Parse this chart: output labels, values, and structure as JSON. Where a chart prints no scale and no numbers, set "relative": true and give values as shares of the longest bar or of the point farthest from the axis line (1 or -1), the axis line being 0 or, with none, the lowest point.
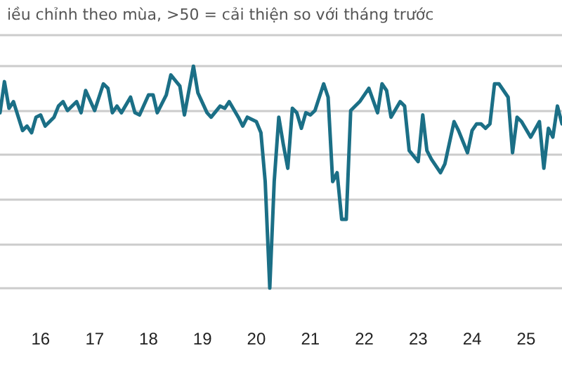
{
  "chart_data": {
    "type": "line",
    "subtitle": "iều chỉnh theo mùa, >50 = cải thiện so với tháng trước",
    "relative": true,
    "grid": "y",
    "marker": "none",
    "line_style": "solid",
    "xlim": [
      "2015-04",
      "2025-09"
    ],
    "xticks": [
      {
        "value": "2016-01",
        "label": "16"
      },
      {
        "value": "2017-01",
        "label": "17"
      },
      {
        "value": "2018-01",
        "label": "18"
      },
      {
        "value": "2019-01",
        "label": "19"
      },
      {
        "value": "2020-01",
        "label": "20"
      },
      {
        "value": "2021-01",
        "label": "21"
      },
      {
        "value": "2022-01",
        "label": "22"
      },
      {
        "value": "2023-01",
        "label": "23"
      },
      {
        "value": "2024-01",
        "label": "24"
      },
      {
        "value": "2025-01",
        "label": "25"
      }
    ],
    "x": [
      "2015-04",
      "2015-05",
      "2015-06",
      "2015-07",
      "2015-09",
      "2015-10",
      "2015-11",
      "2015-12",
      "2016-01",
      "2016-02",
      "2016-04",
      "2016-05",
      "2016-06",
      "2016-07",
      "2016-09",
      "2016-10",
      "2016-11",
      "2017-01",
      "2017-03",
      "2017-04",
      "2017-05",
      "2017-06",
      "2017-07",
      "2017-09",
      "2017-10",
      "2017-11",
      "2018-01",
      "2018-02",
      "2018-03",
      "2018-05",
      "2018-06",
      "2018-08",
      "2018-09",
      "2018-11",
      "2018-12",
      "2019-02",
      "2019-03",
      "2019-05",
      "2019-06",
      "2019-07",
      "2019-09",
      "2019-10",
      "2019-11",
      "2020-01",
      "2020-02",
      "2020-03",
      "2020-04",
      "2020-05",
      "2020-06",
      "2020-07",
      "2020-08",
      "2020-09",
      "2020-10",
      "2020-11",
      "2020-12",
      "2021-01",
      "2021-02",
      "2021-04",
      "2021-05",
      "2021-06",
      "2021-07",
      "2021-08",
      "2021-09",
      "2021-10",
      "2021-12",
      "2022-02",
      "2022-04",
      "2022-05",
      "2022-06",
      "2022-07",
      "2022-09",
      "2022-10",
      "2022-11",
      "2023-01",
      "2023-02",
      "2023-03",
      "2023-04",
      "2023-06",
      "2023-07",
      "2023-09",
      "2023-10",
      "2023-12",
      "2024-01",
      "2024-02",
      "2024-03",
      "2024-04",
      "2024-05",
      "2024-06",
      "2024-07",
      "2024-09",
      "2024-10",
      "2024-11",
      "2024-12",
      "2025-02",
      "2025-04",
      "2025-05",
      "2025-06",
      "2025-07",
      "2025-08",
      "2025-09"
    ],
    "series": [
      {
        "color": "#1b6f86",
        "values": [
          0.79,
          0.93,
          0.81,
          0.84,
          0.71,
          0.73,
          0.7,
          0.77,
          0.78,
          0.73,
          0.77,
          0.82,
          0.84,
          0.8,
          0.84,
          0.79,
          0.89,
          0.8,
          0.92,
          0.9,
          0.79,
          0.82,
          0.79,
          0.86,
          0.79,
          0.78,
          0.87,
          0.87,
          0.79,
          0.87,
          0.96,
          0.91,
          0.78,
          1,
          0.88,
          0.79,
          0.77,
          0.82,
          0.81,
          0.84,
          0.77,
          0.73,
          0.77,
          0.75,
          0.7,
          0.48,
          0,
          0.48,
          0.77,
          0.65,
          0.54,
          0.81,
          0.79,
          0.72,
          0.79,
          0.78,
          0.8,
          0.92,
          0.86,
          0.48,
          0.52,
          0.31,
          0.31,
          0.8,
          0.84,
          0.9,
          0.79,
          0.92,
          0.89,
          0.77,
          0.84,
          0.82,
          0.62,
          0.57,
          0.78,
          0.62,
          0.58,
          0.52,
          0.56,
          0.75,
          0.71,
          0.61,
          0.71,
          0.74,
          0.74,
          0.72,
          0.74,
          0.92,
          0.92,
          0.86,
          0.61,
          0.77,
          0.75,
          0.68,
          0.75,
          0.54,
          0.72,
          0.68,
          0.82,
          0.74
        ]
      }
    ]
  }
}
